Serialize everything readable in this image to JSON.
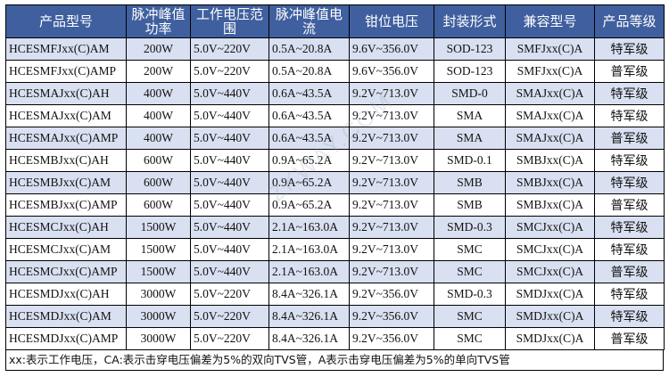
{
  "table": {
    "headers": [
      "产品型号",
      "脉冲峰值功率",
      "工作电压范围",
      "脉冲峰值电流",
      "钳位电压",
      "封装形式",
      "兼容型号",
      "产品等级"
    ],
    "rows": [
      [
        "HCESMFJxx(C)AM",
        "200W",
        "5.0V~220V",
        "0.5A~20.8A",
        "9.6V~356.0V",
        "SOD-123",
        "SMFJxx(C)A",
        "特军级"
      ],
      [
        "HCESMFJxx(C)AMP",
        "200W",
        "5.0V~220V",
        "0.5A~20.8A",
        "9.6V~356.0V",
        "SOD-123",
        "SMFJxx(C)A",
        "普军级"
      ],
      [
        "HCESMAJxx(C)AH",
        "400W",
        "5.0V~440V",
        "0.6A~43.5A",
        "9.2V~713.0V",
        "SMD-0",
        "SMAJxx(C)A",
        "特军级"
      ],
      [
        "HCESMAJxx(C)AM",
        "400W",
        "5.0V~440V",
        "0.6A~43.5A",
        "9.2V~713.0V",
        "SMA",
        "SMAJxx(C)A",
        "特军级"
      ],
      [
        "HCESMAJxx(C)AMP",
        "400W",
        "5.0V~440V",
        "0.6A~43.5A",
        "9.2V~713.0V",
        "SMA",
        "SMAJxx(C)A",
        "普军级"
      ],
      [
        "HCESMBJxx(C)AH",
        "600W",
        "5.0V~440V",
        "0.9A~65.2A",
        "9.2V~713.0V",
        "SMD-0.1",
        "SMBJxx(C)A",
        "特军级"
      ],
      [
        "HCESMBJxx(C)AM",
        "600W",
        "5.0V~440V",
        "0.9A~65.2A",
        "9.2V~713.0V",
        "SMB",
        "SMBJxx(C)A",
        "特军级"
      ],
      [
        "HCESMBJxx(C)AMP",
        "600W",
        "5.0V~440V",
        "0.9A~65.2A",
        "9.2V~713.0V",
        "SMB",
        "SMBJxx(C)A",
        "普军级"
      ],
      [
        "HCESMCJxx(C)AH",
        "1500W",
        "5.0V~440V",
        "2.1A~163.0A",
        "9.2V~713.0V",
        "SMD-0.3",
        "SMCJxx(C)A",
        "特军级"
      ],
      [
        "HCESMCJxx(C)AM",
        "1500W",
        "5.0V~440V",
        "2.1A~163.0A",
        "9.2V~713.0V",
        "SMC",
        "SMCJxx(C)A",
        "特军级"
      ],
      [
        "HCESMCJxx(C)AMP",
        "1500W",
        "5.0V~440V",
        "2.1A~163.0A",
        "9.2V~713.0V",
        "SMC",
        "SMCJxx(C)A",
        "普军级"
      ],
      [
        "HCESMDJxx(C)AH",
        "3000W",
        "5.0V~220V",
        "8.4A~326.1A",
        "9.2V~356.0V",
        "SMD-0.3",
        "SMDJxx(C)A",
        "特军级"
      ],
      [
        "HCESMDJxx(C)AM",
        "3000W",
        "5.0V~220V",
        "8.4A~326.1A",
        "9.2V~356.0V",
        "SMC",
        "SMDJxx(C)A",
        "特军级"
      ],
      [
        "HCESMDJxx(C)AMP",
        "3000W",
        "5.0V~220V",
        "8.4A~326.1A",
        "9.2V~356.0V",
        "SMC",
        "SMDJxx(C)A",
        "普军级"
      ]
    ]
  },
  "footnote": "xx:表示工作电压，CA:表示击穿电压偏差为5%的双向TVS管，A表示击穿电压偏差为5%的单向TVS管",
  "watermark": "ZKWAY.COM",
  "colors": {
    "header_bg": "#3f5f9f",
    "header_text": "#ffffff",
    "band_row_bg": "#d8e0f1",
    "plain_row_bg": "#ffffff",
    "border": "#000000"
  }
}
